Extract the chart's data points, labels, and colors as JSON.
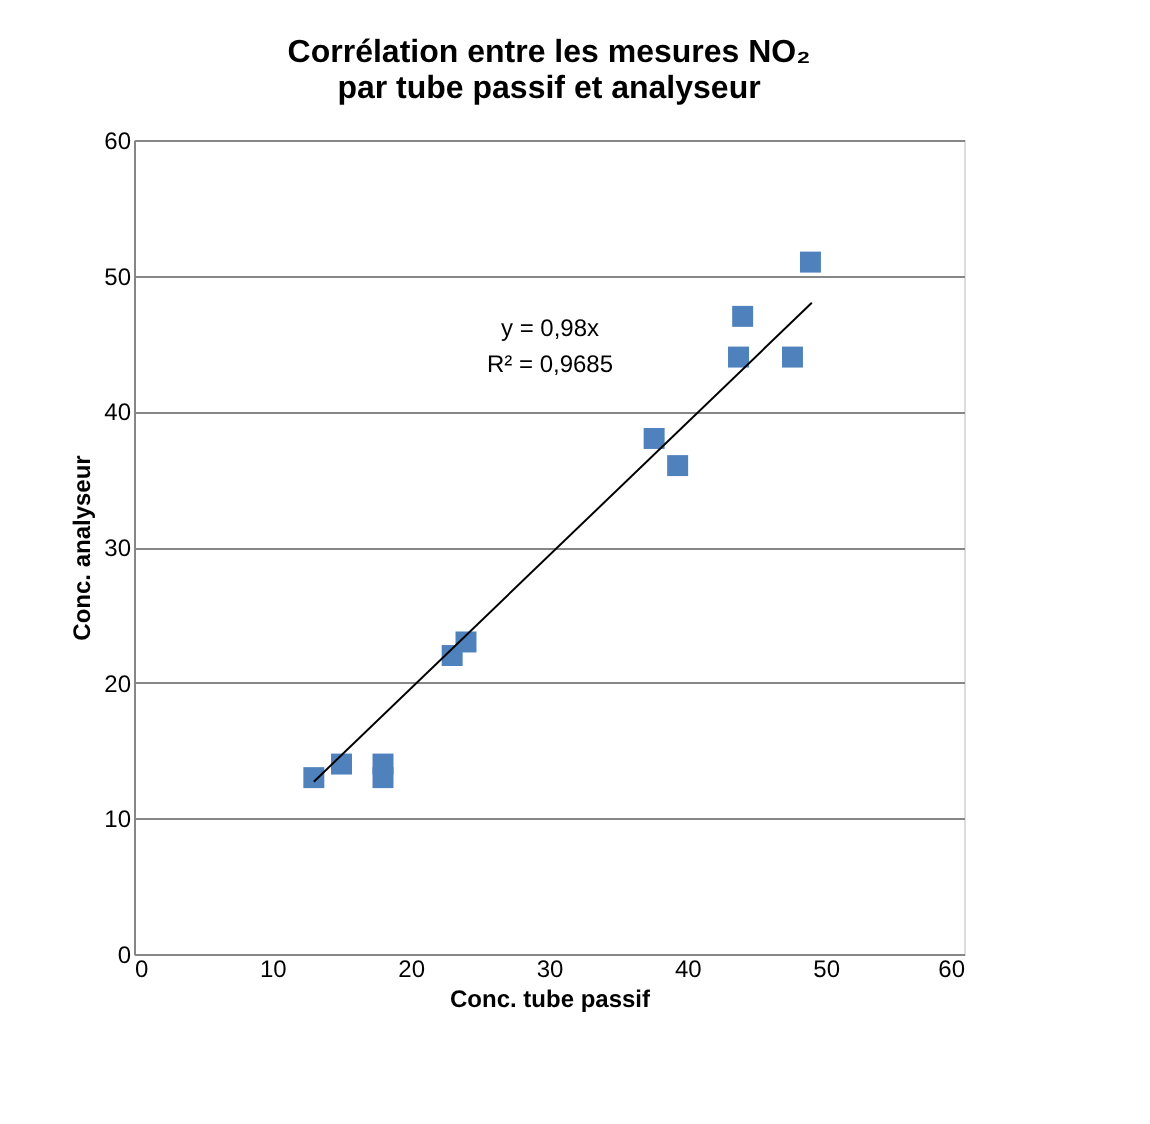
{
  "chart_data": {
    "type": "scatter",
    "title": "Corrélation entre les mesures NO₂\npar tube passif et analyseur",
    "xlabel": "Conc. tube passif",
    "ylabel": "Conc. analyseur",
    "annotations": [
      "y = 0,98x",
      "R² = 0,9685"
    ],
    "series": [
      {
        "color": "#4f81bd",
        "marker": "square",
        "x": [
          13,
          15,
          18,
          18,
          23,
          24,
          37.6,
          39.3,
          43.7,
          44,
          47.6,
          48.9
        ],
        "values": [
          13,
          14,
          14,
          13,
          22,
          23,
          38,
          36,
          44,
          47,
          44,
          51
        ]
      },
      {
        "type": "line",
        "color": "#000000",
        "x": [
          13,
          49
        ],
        "values": [
          12.7,
          48
        ]
      }
    ],
    "xlim": [
      0,
      60
    ],
    "ylim": [
      0,
      60
    ],
    "xticks": [
      0,
      10,
      20,
      30,
      40,
      50,
      60
    ],
    "yticks": [
      0,
      10,
      20,
      30,
      40,
      50,
      60
    ],
    "grid": "y"
  }
}
